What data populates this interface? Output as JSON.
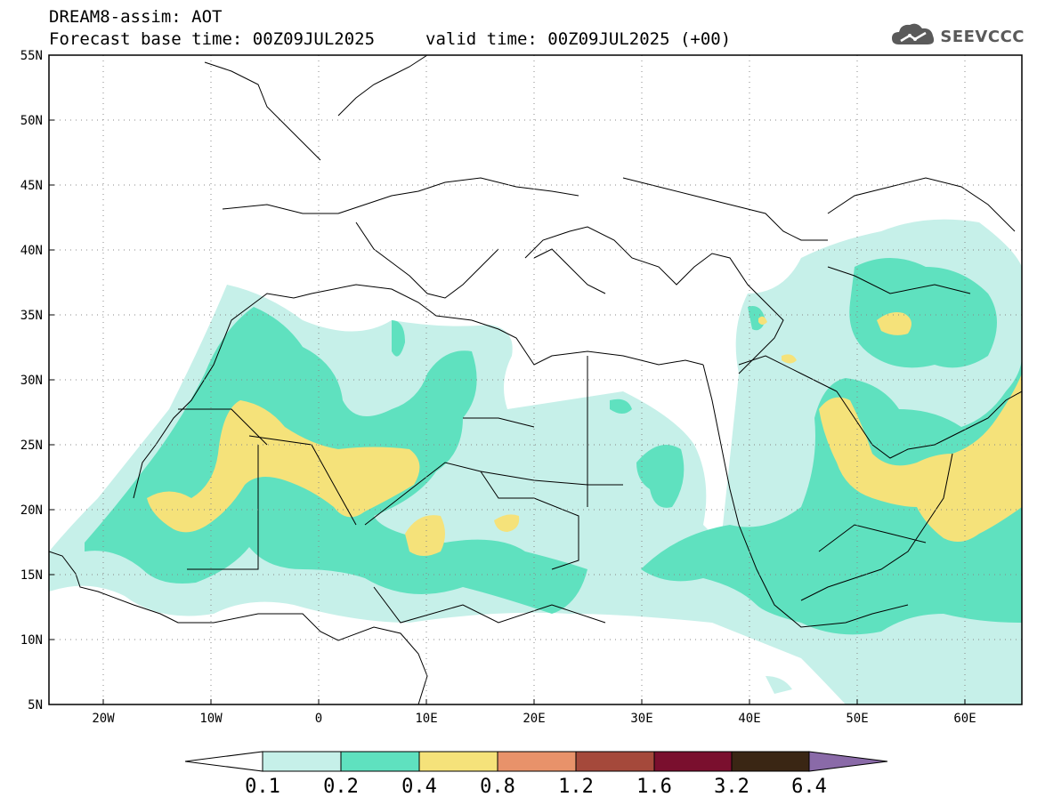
{
  "header": {
    "title_line1": "DREAM8-assim: AOT",
    "title_line2a": "Forecast base time: 00Z09JUL2025",
    "title_line2b": "valid time: 00Z09JUL2025 (+00)",
    "logo_text": "SEEVCCC"
  },
  "map": {
    "lat_labels": [
      "55N",
      "50N",
      "45N",
      "40N",
      "35N",
      "30N",
      "25N",
      "20N",
      "15N",
      "10N",
      "5N"
    ],
    "lon_labels": [
      "20W",
      "10W",
      "0",
      "10E",
      "20E",
      "30E",
      "40E",
      "50E",
      "60E"
    ],
    "lon_range": [
      -25,
      65
    ],
    "lat_range": [
      5,
      55
    ]
  },
  "colorbar": {
    "labels": [
      "0.1",
      "0.2",
      "0.4",
      "0.8",
      "1.2",
      "1.6",
      "3.2",
      "6.4"
    ],
    "colors": [
      "#ffffff",
      "#c6f0e9",
      "#5fe1bf",
      "#f5e27a",
      "#e8926a",
      "#a5493b",
      "#7a0f2e",
      "#3a2614",
      "#8a6aa8"
    ]
  }
}
